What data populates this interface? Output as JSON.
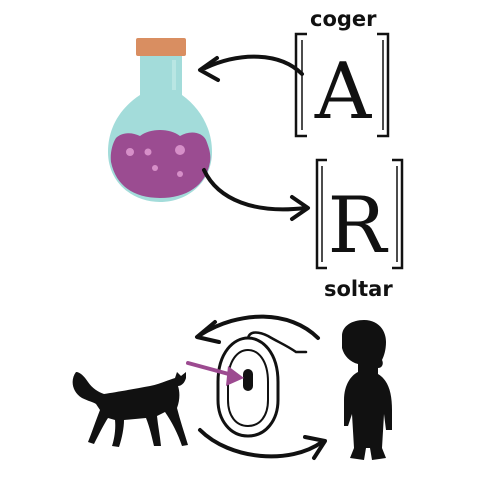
{
  "labels": {
    "pick_up": "coger",
    "drop": "soltar"
  },
  "keys": {
    "pick_up_key": "A",
    "drop_key": "R"
  },
  "icons": {
    "potion": "potion-bottle-icon",
    "mouse": "computer-mouse-icon",
    "cat": "cat-silhouette-icon",
    "person": "person-silhouette-icon"
  },
  "colors": {
    "potion_glass": "#a3dcda",
    "potion_liquid": "#9b4c91",
    "potion_bubbles": "#d68fc8",
    "cork": "#d98e61",
    "pointer_arrow": "#9c4a90",
    "ink": "#111111"
  }
}
